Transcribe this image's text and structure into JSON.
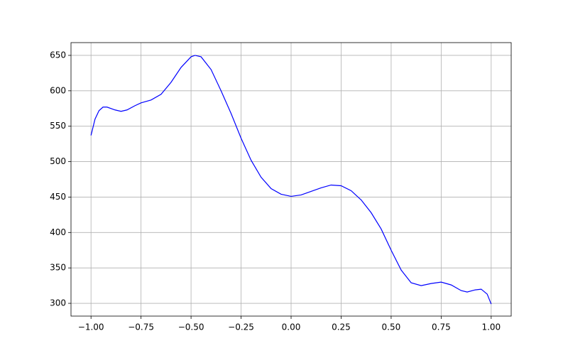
{
  "chart_data": {
    "type": "line",
    "x": [
      -1,
      -0.98,
      -0.96,
      -0.94,
      -0.92,
      -0.88,
      -0.85,
      -0.82,
      -0.78,
      -0.75,
      -0.7,
      -0.65,
      -0.6,
      -0.55,
      -0.5,
      -0.48,
      -0.45,
      -0.4,
      -0.35,
      -0.3,
      -0.25,
      -0.2,
      -0.15,
      -0.1,
      -0.05,
      0,
      0.05,
      0.1,
      0.15,
      0.2,
      0.25,
      0.3,
      0.35,
      0.4,
      0.45,
      0.5,
      0.55,
      0.6,
      0.65,
      0.7,
      0.75,
      0.8,
      0.85,
      0.88,
      0.92,
      0.95,
      0.98,
      1
    ],
    "series": [
      {
        "color": "#0000ff",
        "values": [
          537,
          560,
          572,
          577,
          577,
          573,
          571,
          573,
          579,
          583,
          587,
          595,
          612,
          633,
          648,
          650,
          648,
          630,
          600,
          568,
          533,
          502,
          478,
          462,
          454,
          451,
          453,
          458,
          463,
          467,
          466,
          459,
          446,
          428,
          405,
          375,
          347,
          329,
          325,
          328,
          330,
          326,
          318,
          316,
          319,
          320,
          313,
          299
        ]
      }
    ],
    "xlim": [
      -1.1,
      1.1
    ],
    "ylim": [
      282,
      668
    ],
    "xticks": [
      {
        "value": -1,
        "label": "−1.00"
      },
      {
        "value": -0.75,
        "label": "−0.75"
      },
      {
        "value": -0.5,
        "label": "−0.50"
      },
      {
        "value": -0.25,
        "label": "−0.25"
      },
      {
        "value": 0,
        "label": "0.00"
      },
      {
        "value": 0.25,
        "label": "0.25"
      },
      {
        "value": 0.5,
        "label": "0.50"
      },
      {
        "value": 0.75,
        "label": "0.75"
      },
      {
        "value": 1,
        "label": "1.00"
      }
    ],
    "yticks": [
      300,
      350,
      400,
      450,
      500,
      550,
      600,
      650
    ],
    "grid": true
  }
}
